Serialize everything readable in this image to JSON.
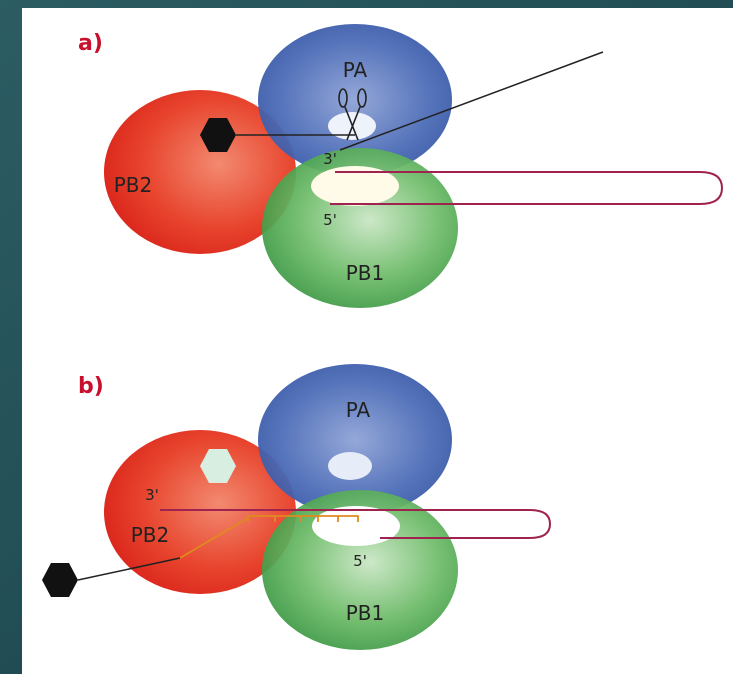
{
  "panels": [
    {
      "label": "a)",
      "nodes": {
        "pa": "PA",
        "pb2": "PB2",
        "pb1": "PB1",
        "end3": "3'",
        "end5": "5'"
      }
    },
    {
      "label": "b)",
      "nodes": {
        "pa": "PA",
        "pb2": "PB2",
        "pb1": "PB1",
        "end3": "3'",
        "end5": "5'"
      }
    }
  ]
}
